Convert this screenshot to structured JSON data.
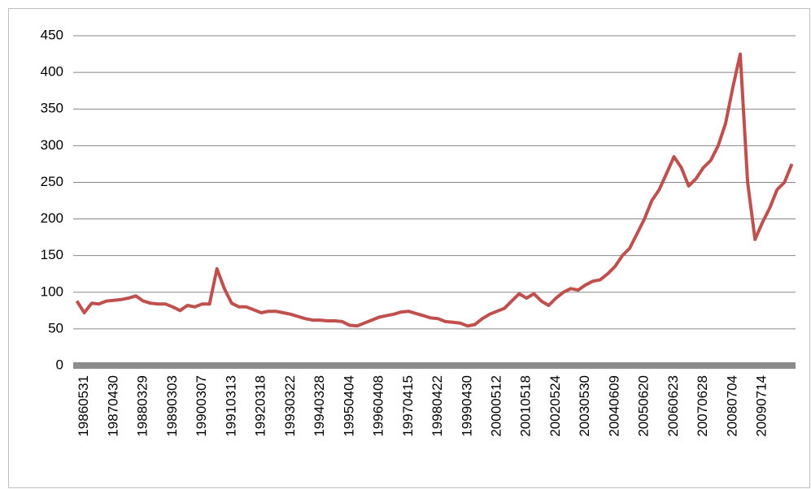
{
  "chart_data": {
    "type": "line",
    "categories": [
      null,
      "19860531",
      null,
      null,
      null,
      "19870430",
      null,
      null,
      null,
      "19880329",
      null,
      null,
      null,
      "19890303",
      null,
      null,
      null,
      "19900307",
      null,
      null,
      null,
      "19910313",
      null,
      null,
      null,
      "19920318",
      null,
      null,
      null,
      "19930322",
      null,
      null,
      null,
      "19940328",
      null,
      null,
      null,
      "19950404",
      null,
      null,
      null,
      "19960408",
      null,
      null,
      null,
      "19970415",
      null,
      null,
      null,
      "19980422",
      null,
      null,
      null,
      "19990430",
      null,
      null,
      null,
      "20000512",
      null,
      null,
      null,
      "20010518",
      null,
      null,
      null,
      "20020524",
      null,
      null,
      null,
      "20030530",
      null,
      null,
      null,
      "20040609",
      null,
      null,
      null,
      "20050620",
      null,
      null,
      null,
      "20060623",
      null,
      null,
      null,
      "20070628",
      null,
      null,
      null,
      "20080704",
      null,
      null,
      null,
      "20090714",
      null,
      null,
      null,
      null
    ],
    "series": [
      {
        "color": "#c0504d",
        "values": [
          88,
          72,
          85,
          84,
          88,
          89,
          90,
          92,
          95,
          88,
          85,
          84,
          84,
          80,
          75,
          82,
          80,
          84,
          84,
          132,
          105,
          85,
          80,
          80,
          76,
          72,
          74,
          74,
          72,
          70,
          67,
          64,
          62,
          62,
          61,
          61,
          60,
          55,
          54,
          58,
          62,
          66,
          68,
          70,
          73,
          74,
          71,
          68,
          65,
          64,
          60,
          59,
          58,
          54,
          56,
          64,
          70,
          74,
          78,
          88,
          98,
          92,
          98,
          88,
          82,
          92,
          100,
          105,
          103,
          110,
          115,
          117,
          125,
          135,
          150,
          160,
          180,
          200,
          225,
          240,
          262,
          285,
          270,
          245,
          255,
          270,
          280,
          300,
          330,
          380,
          425,
          250,
          172,
          195,
          215,
          240,
          250,
          275
        ]
      }
    ],
    "ylim": [
      0,
      450
    ],
    "yticks": [
      0,
      50,
      100,
      150,
      200,
      250,
      300,
      350,
      400,
      450
    ],
    "grid": true
  }
}
